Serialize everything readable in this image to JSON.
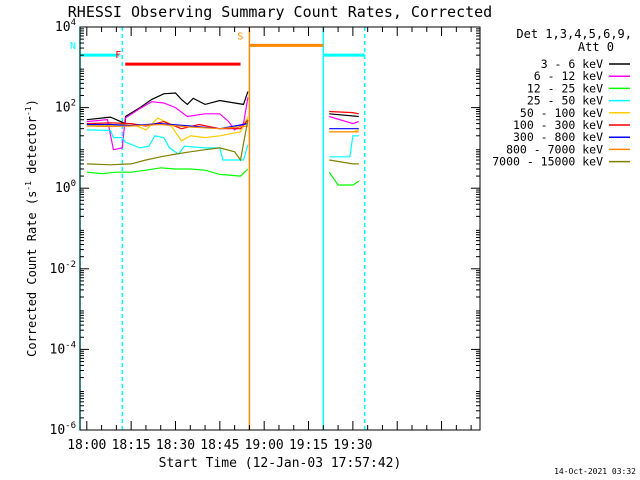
{
  "chart_data": {
    "type": "line",
    "title": "RHESSI Observing Summary Count Rates, Corrected",
    "xlabel": "Start Time (12-Jan-03 17:57:42)",
    "ylabel_main": "Corrected Count Rate (s",
    "ylabel_sup1": "-1",
    "ylabel_mid": " detector",
    "ylabel_sup2": "-1",
    "ylabel_end": ")",
    "yscale": "log",
    "ylim": [
      1e-06,
      10000.0
    ],
    "xlim": [
      "17:57:42",
      "20:13:00"
    ],
    "x_ticks": [
      "18:00",
      "18:15",
      "18:30",
      "18:45",
      "19:00",
      "19:15",
      "19:30"
    ],
    "y_ticks": [
      {
        "base": "10",
        "exp": "4"
      },
      {
        "base": "10",
        "exp": "2"
      },
      {
        "base": "10",
        "exp": "0"
      },
      {
        "base": "10",
        "exp": "-2"
      },
      {
        "base": "10",
        "exp": "-4"
      },
      {
        "base": "10",
        "exp": "-6"
      }
    ],
    "legend_header": [
      "Det 1,3,4,5,6,9,",
      "Att 0"
    ],
    "legend_position": "top-right, outside plot",
    "series": [
      {
        "name": "3 - 6 keV",
        "color": "#000000",
        "segments": [
          [
            [
              "18:00",
              50
            ],
            [
              "18:08",
              58
            ],
            [
              "18:13",
              40
            ],
            [
              "18:13.1",
              60
            ],
            [
              "18:18",
              100
            ],
            [
              "18:22",
              160
            ],
            [
              "18:26",
              220
            ],
            [
              "18:30",
              230
            ],
            [
              "18:32",
              160
            ],
            [
              "18:34",
              120
            ],
            [
              "18:36",
              170
            ],
            [
              "18:40",
              120
            ],
            [
              "18:45",
              150
            ],
            [
              "18:50",
              130
            ],
            [
              "18:53",
              120
            ],
            [
              "18:54.5",
              250
            ]
          ],
          [
            [
              "19:22",
              70
            ],
            [
              "19:32",
              60
            ]
          ]
        ]
      },
      {
        "name": "6 - 12 keV",
        "color": "#ff00ff",
        "segments": [
          [
            [
              "18:00",
              45
            ],
            [
              "18:07",
              50
            ],
            [
              "18:09",
              9
            ],
            [
              "18:12",
              10
            ],
            [
              "18:13",
              55
            ],
            [
              "18:18",
              95
            ],
            [
              "18:22",
              140
            ],
            [
              "18:26",
              130
            ],
            [
              "18:30",
              100
            ],
            [
              "18:34",
              60
            ],
            [
              "18:40",
              70
            ],
            [
              "18:45",
              70
            ],
            [
              "18:48",
              45
            ],
            [
              "18:50",
              28
            ],
            [
              "18:53",
              40
            ],
            [
              "18:54.5",
              180
            ]
          ],
          [
            [
              "19:22",
              60
            ],
            [
              "19:30",
              40
            ],
            [
              "19:32",
              45
            ]
          ]
        ]
      },
      {
        "name": "12 - 25 keV",
        "color": "#00ff00",
        "segments": [
          [
            [
              "18:00",
              2.5
            ],
            [
              "18:05",
              2.3
            ],
            [
              "18:10",
              2.5
            ],
            [
              "18:15",
              2.5
            ],
            [
              "18:20",
              2.8
            ],
            [
              "18:25",
              3.2
            ],
            [
              "18:30",
              3.0
            ],
            [
              "18:35",
              3.0
            ],
            [
              "18:40",
              2.8
            ],
            [
              "18:45",
              2.2
            ],
            [
              "18:52",
              2.0
            ],
            [
              "18:54.5",
              3.0
            ]
          ],
          [
            [
              "19:22",
              2.5
            ],
            [
              "19:25",
              1.2
            ],
            [
              "19:30",
              1.2
            ],
            [
              "19:32",
              1.5
            ]
          ]
        ]
      },
      {
        "name": "25 - 50 keV",
        "color": "#00ffff",
        "segments": [
          [
            [
              "18:00",
              28
            ],
            [
              "18:08",
              27
            ],
            [
              "18:09",
              18
            ],
            [
              "18:12",
              18
            ],
            [
              "18:13",
              14
            ],
            [
              "18:18",
              10
            ],
            [
              "18:21",
              11
            ],
            [
              "18:23",
              20
            ],
            [
              "18:26",
              18
            ],
            [
              "18:28",
              10
            ],
            [
              "18:31",
              7
            ],
            [
              "18:33",
              11
            ],
            [
              "18:40",
              10
            ],
            [
              "18:45",
              10
            ],
            [
              "18:46",
              5
            ],
            [
              "18:53",
              5
            ],
            [
              "18:54.5",
              12
            ]
          ],
          [
            [
              "19:22",
              6
            ],
            [
              "19:29",
              6
            ],
            [
              "19:30",
              20
            ],
            [
              "19:32",
              20
            ]
          ]
        ]
      },
      {
        "name": "50 - 100 keV",
        "color": "#ffcc00",
        "segments": [
          [
            [
              "18:00",
              35
            ],
            [
              "18:08",
              36
            ],
            [
              "18:15",
              40
            ],
            [
              "18:20",
              28
            ],
            [
              "18:24",
              55
            ],
            [
              "18:28",
              40
            ],
            [
              "18:32",
              15
            ],
            [
              "18:35",
              20
            ],
            [
              "18:40",
              18
            ],
            [
              "18:45",
              20
            ],
            [
              "18:52",
              25
            ],
            [
              "18:54.5",
              60
            ]
          ],
          [
            [
              "19:22",
              25
            ],
            [
              "19:30",
              25
            ],
            [
              "19:32",
              28
            ]
          ]
        ]
      },
      {
        "name": "100 - 300 keV",
        "color": "#ff0000",
        "segments": [
          [
            [
              "18:00",
              40
            ],
            [
              "18:08",
              42
            ],
            [
              "18:15",
              40
            ],
            [
              "18:20",
              35
            ],
            [
              "18:26",
              45
            ],
            [
              "18:32",
              30
            ],
            [
              "18:38",
              38
            ],
            [
              "18:45",
              30
            ],
            [
              "18:52",
              30
            ],
            [
              "18:54.5",
              50
            ]
          ],
          [
            [
              "19:22",
              80
            ],
            [
              "19:30",
              75
            ],
            [
              "19:32",
              70
            ]
          ]
        ]
      },
      {
        "name": "300 - 800 keV",
        "color": "#0000ff",
        "segments": [
          [
            [
              "18:00",
              38
            ],
            [
              "18:08",
              38
            ],
            [
              "18:15",
              36
            ],
            [
              "18:25",
              40
            ],
            [
              "18:35",
              35
            ],
            [
              "18:45",
              30
            ],
            [
              "18:54.5",
              40
            ]
          ],
          [
            [
              "19:22",
              30
            ],
            [
              "19:32",
              30
            ]
          ]
        ]
      },
      {
        "name": "800 - 7000 keV",
        "color": "#ff8800",
        "segments": [
          [
            [
              "18:00",
              35
            ],
            [
              "18:08",
              34
            ],
            [
              "18:15",
              35
            ],
            [
              "18:25",
              38
            ],
            [
              "18:35",
              33
            ],
            [
              "18:45",
              30
            ],
            [
              "18:54.5",
              35
            ]
          ],
          [
            [
              "19:22",
              25
            ],
            [
              "19:32",
              25
            ]
          ]
        ]
      },
      {
        "name": "7000 - 15000 keV",
        "color": "#808000",
        "segments": [
          [
            [
              "18:00",
              4
            ],
            [
              "18:08",
              3.8
            ],
            [
              "18:15",
              4
            ],
            [
              "18:20",
              5
            ],
            [
              "18:25",
              6
            ],
            [
              "18:30",
              7
            ],
            [
              "18:35",
              8
            ],
            [
              "18:40",
              9
            ],
            [
              "18:45",
              10
            ],
            [
              "18:50",
              8
            ],
            [
              "18:52",
              5
            ],
            [
              "18:54.5",
              50
            ]
          ],
          [
            [
              "19:22",
              5
            ],
            [
              "19:30",
              4
            ],
            [
              "19:32",
              4
            ]
          ]
        ]
      }
    ],
    "flags": [
      {
        "label": "N",
        "color": "#00ffff",
        "y": 2000,
        "segments": [
          [
            "17:57:42",
            "18:11"
          ],
          [
            "19:20",
            "19:34"
          ]
        ]
      },
      {
        "label": "F",
        "color": "#ff0000",
        "y": 1200,
        "segments": [
          [
            "18:13",
            "18:52"
          ]
        ]
      },
      {
        "label": "S",
        "color": "#ff8800",
        "y": 3500,
        "segments": [
          [
            "18:55",
            "19:20"
          ]
        ]
      }
    ],
    "vlines": [
      {
        "t": "17:57:42",
        "color": "#00ffff",
        "style": "solid"
      },
      {
        "t": "18:12",
        "color": "#00ffff",
        "style": "dashed"
      },
      {
        "t": "18:55",
        "color": "#ff8800",
        "style": "solid"
      },
      {
        "t": "19:20",
        "color": "#00ffff",
        "style": "solid"
      },
      {
        "t": "19:34",
        "color": "#00ffff",
        "style": "dashed"
      }
    ],
    "footer_date": "14-Oct-2021 03:32"
  }
}
